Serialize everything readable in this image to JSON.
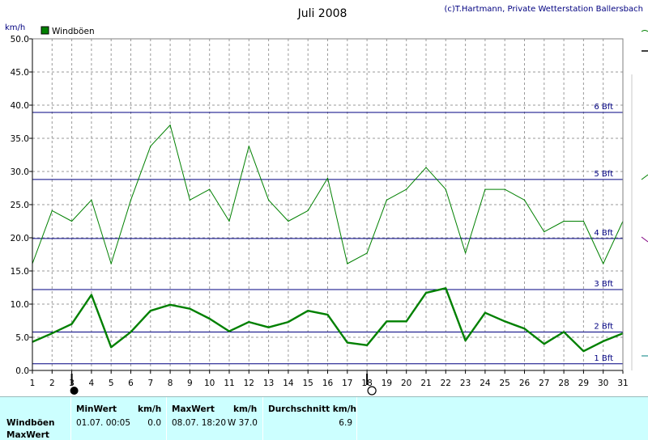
{
  "chart_data": {
    "type": "line",
    "title": "Juli 2008",
    "credit": "(c)T.Hartmann, Private Wetterstation Ballersbach",
    "ylabel": "km/h",
    "ylim": [
      0,
      50
    ],
    "yticks": [
      "0.0",
      "5.0",
      "10.0",
      "15.0",
      "20.0",
      "25.0",
      "30.0",
      "35.0",
      "40.0",
      "45.0",
      "50.0"
    ],
    "x": [
      1,
      2,
      3,
      4,
      5,
      6,
      7,
      8,
      9,
      10,
      11,
      12,
      13,
      14,
      15,
      16,
      17,
      18,
      19,
      20,
      21,
      22,
      23,
      24,
      25,
      26,
      27,
      28,
      29,
      30,
      31
    ],
    "legend": "Windböen",
    "legend_color": "#008000",
    "grid": true,
    "series": [
      {
        "name": "Windböen",
        "style": "thin",
        "color": "#008000",
        "values": [
          16.1,
          24.1,
          22.5,
          25.7,
          16.1,
          25.7,
          33.8,
          37.0,
          25.7,
          27.3,
          22.5,
          33.8,
          25.7,
          22.5,
          24.1,
          29.0,
          16.1,
          17.7,
          25.7,
          27.3,
          30.6,
          27.3,
          17.7,
          27.3,
          27.3,
          25.7,
          20.9,
          22.5,
          22.5,
          16.1,
          22.5
        ]
      },
      {
        "style": "thick",
        "color": "#008000",
        "values": [
          4.3,
          5.6,
          7.0,
          11.4,
          3.5,
          5.8,
          9.0,
          9.9,
          9.3,
          7.8,
          5.9,
          7.3,
          6.5,
          7.3,
          9.0,
          8.4,
          4.2,
          3.8,
          7.4,
          7.4,
          11.7,
          12.4,
          4.5,
          8.7,
          7.4,
          6.3,
          4.0,
          5.8,
          2.9,
          4.4,
          5.6
        ]
      }
    ],
    "beaufort": [
      {
        "label": "1 Bft",
        "value": 1
      },
      {
        "label": "2 Bft",
        "value": 5.8
      },
      {
        "label": "3 Bft",
        "value": 12.2
      },
      {
        "label": "4 Bft",
        "value": 19.9
      },
      {
        "label": "5 Bft",
        "value": 28.8
      },
      {
        "label": "6 Bft",
        "value": 38.9
      }
    ],
    "beaufort_color": "#000080",
    "moon_markers": [
      {
        "day": 3,
        "phase": "new-moon"
      },
      {
        "day": 18,
        "phase": "full-moon"
      }
    ]
  },
  "stats": {
    "row_labels": [
      "Windböen",
      "MaxWert"
    ],
    "min_header": "MinWert",
    "min_unit": "km/h",
    "min_time": "01.07.  00:05",
    "min_value": "0.0",
    "max_header": "MaxWert",
    "max_unit": "km/h",
    "max_time": "08.07.  18:20",
    "max_value": "W 37.0",
    "avg_header": "Durchschnitt km/h",
    "avg_value": "6.9"
  }
}
